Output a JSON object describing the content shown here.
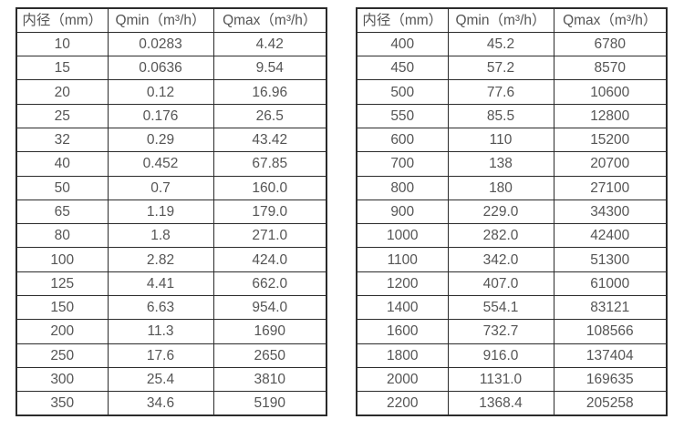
{
  "colors": {
    "border": "#2b2b2b",
    "text": "#555555",
    "background": "#ffffff"
  },
  "chart_data": [
    {
      "type": "table",
      "title": "",
      "columns": [
        "内径（mm）",
        "Qmin（m³/h）",
        "Qmax（m³/h）"
      ],
      "rows": [
        [
          "10",
          "0.0283",
          "4.42"
        ],
        [
          "15",
          "0.0636",
          "9.54"
        ],
        [
          "20",
          "0.12",
          "16.96"
        ],
        [
          "25",
          "0.176",
          "26.5"
        ],
        [
          "32",
          "0.29",
          "43.42"
        ],
        [
          "40",
          "0.452",
          "67.85"
        ],
        [
          "50",
          "0.7",
          "160.0"
        ],
        [
          "65",
          "1.19",
          "179.0"
        ],
        [
          "80",
          "1.8",
          "271.0"
        ],
        [
          "100",
          "2.82",
          "424.0"
        ],
        [
          "125",
          "4.41",
          "662.0"
        ],
        [
          "150",
          "6.63",
          "954.0"
        ],
        [
          "200",
          "11.3",
          "1690"
        ],
        [
          "250",
          "17.6",
          "2650"
        ],
        [
          "300",
          "25.4",
          "3810"
        ],
        [
          "350",
          "34.6",
          "5190"
        ]
      ]
    },
    {
      "type": "table",
      "title": "",
      "columns": [
        "内径（mm）",
        "Qmin（m³/h）",
        "Qmax（m³/h）"
      ],
      "rows": [
        [
          "400",
          "45.2",
          "6780"
        ],
        [
          "450",
          "57.2",
          "8570"
        ],
        [
          "500",
          "77.6",
          "10600"
        ],
        [
          "550",
          "85.5",
          "12800"
        ],
        [
          "600",
          "110",
          "15200"
        ],
        [
          "700",
          "138",
          "20700"
        ],
        [
          "800",
          "180",
          "27100"
        ],
        [
          "900",
          "229.0",
          "34300"
        ],
        [
          "1000",
          "282.0",
          "42400"
        ],
        [
          "1100",
          "342.0",
          "51300"
        ],
        [
          "1200",
          "407.0",
          "61000"
        ],
        [
          "1400",
          "554.1",
          "83121"
        ],
        [
          "1600",
          "732.7",
          "108566"
        ],
        [
          "1800",
          "916.0",
          "137404"
        ],
        [
          "2000",
          "1131.0",
          "169635"
        ],
        [
          "2200",
          "1368.4",
          "205258"
        ]
      ]
    }
  ]
}
